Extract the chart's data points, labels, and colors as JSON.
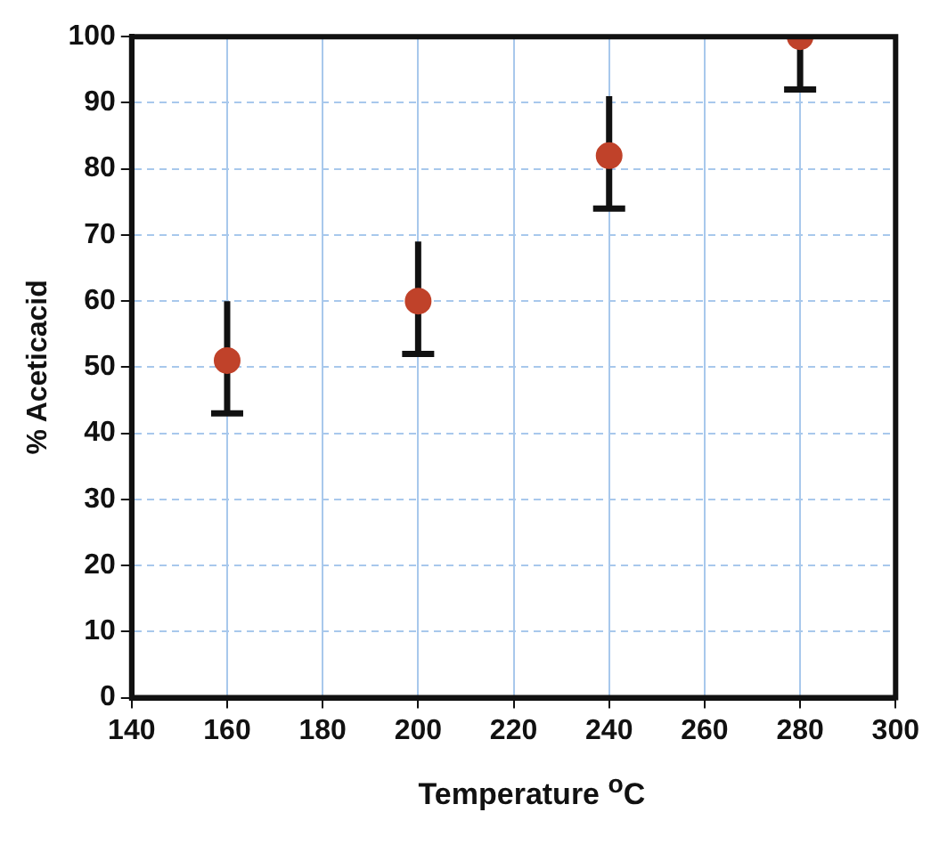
{
  "chart_data": {
    "type": "scatter",
    "xlabel": "Temperature $^{o}$C",
    "ylabel": "% Aceticacid",
    "x": [
      160,
      200,
      240,
      280
    ],
    "series": [
      {
        "color": "#c0422a",
        "values": [
          51,
          60,
          82,
          100
        ],
        "errors": [
          [
            43,
            60
          ],
          [
            52,
            69
          ],
          [
            74,
            91
          ],
          [
            92,
            100
          ]
        ]
      }
    ],
    "xlim": [
      140,
      300
    ],
    "xticks": [
      140,
      160,
      180,
      200,
      220,
      240,
      260,
      280,
      300
    ],
    "ylim": [
      0,
      100
    ],
    "yticks": [
      0,
      10,
      20,
      30,
      40,
      50,
      60,
      70,
      80,
      90,
      100
    ],
    "grid": true,
    "marker": "circle",
    "legend": false
  }
}
